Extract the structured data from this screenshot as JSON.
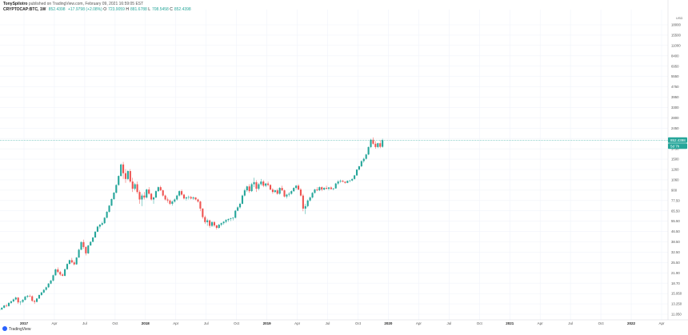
{
  "header": {
    "author": "TonySpilotro",
    "published": "published on TradingView.com, February 09, 2021 16:59:05 EST",
    "symbol": "CRYPTOCAP:BTC, 1W",
    "last": "852.4398",
    "change": "+17.9798 (+2.08%)",
    "o_label": "O",
    "o_value": "723.9059",
    "h_label": "H",
    "h_value": "881.6788",
    "l_label": "L",
    "l_value": "708.5458",
    "c_label": "C",
    "c_value": "852.4398"
  },
  "currency_label": "USD",
  "logo_text": "TradingView",
  "price_badges": {
    "last_price": "852.4398",
    "countdown": "5d 7h"
  },
  "colors": {
    "up": "#26a69a",
    "down": "#ef5350",
    "grid": "#f0f3fa",
    "last_price_line": "#26a69a"
  },
  "chart_data": {
    "type": "candlestick",
    "scale": "log",
    "y_ticks": [
      "18000",
      "15500",
      "11000",
      "8400",
      "6950",
      "5550",
      "4750",
      "3950",
      "3300",
      "2800",
      "2450",
      "2050",
      "1750",
      "1500",
      "1260",
      "1060",
      "900",
      "77.50",
      "65.50",
      "55.50",
      "46.50",
      "38.50",
      "32.50",
      "25.50",
      "21.90",
      "18.70",
      "15.950",
      "13.250",
      "11.050"
    ],
    "x_ticks": [
      "2017",
      "Apr",
      "Jul",
      "Oct",
      "2018",
      "Apr",
      "Jul",
      "Oct",
      "2019",
      "Apr",
      "Jul",
      "Oct",
      "2020",
      "Apr",
      "Jul",
      "Oct",
      "2021",
      "Apr",
      "Jul",
      "Oct",
      "2022",
      "Apr"
    ],
    "x_tick_dates": [
      "2017-01",
      "2017-04",
      "2017-07",
      "2017-10",
      "2018-01",
      "2018-04",
      "2018-07",
      "2018-10",
      "2019-01",
      "2019-04",
      "2019-07",
      "2019-10",
      "2020-01",
      "2020-04",
      "2020-07",
      "2020-10",
      "2021-01",
      "2021-04",
      "2021-07",
      "2021-10",
      "2022-01",
      "2022-04"
    ],
    "grid": true,
    "interval": "1W",
    "candles_start": "2016-10",
    "candles_ohlc": [
      [
        13.0,
        13.3,
        12.8,
        13.2
      ],
      [
        13.2,
        13.6,
        13.0,
        13.4
      ],
      [
        13.4,
        13.8,
        13.2,
        13.6
      ],
      [
        13.6,
        14.4,
        13.5,
        14.2
      ],
      [
        14.2,
        15.2,
        14.0,
        15.0
      ],
      [
        15.0,
        15.6,
        14.4,
        14.8
      ],
      [
        14.8,
        16.2,
        14.6,
        16.0
      ],
      [
        16.0,
        17.0,
        15.6,
        16.6
      ],
      [
        16.6,
        17.8,
        16.2,
        17.4
      ],
      [
        17.4,
        18.6,
        17.0,
        18.2
      ],
      [
        18.2,
        18.4,
        15.6,
        16.2
      ],
      [
        16.2,
        16.8,
        15.2,
        16.4
      ],
      [
        16.4,
        17.6,
        16.0,
        17.2
      ],
      [
        17.2,
        19.0,
        17.0,
        18.6
      ],
      [
        18.6,
        19.4,
        18.0,
        19.0
      ],
      [
        19.0,
        19.6,
        18.4,
        18.8
      ],
      [
        18.8,
        19.2,
        16.4,
        16.8
      ],
      [
        16.8,
        17.2,
        15.6,
        16.4
      ],
      [
        16.4,
        18.0,
        16.2,
        17.8
      ],
      [
        17.8,
        19.6,
        17.6,
        19.4
      ],
      [
        19.4,
        21.0,
        19.0,
        20.6
      ],
      [
        20.6,
        22.4,
        20.2,
        22.0
      ],
      [
        22.0,
        23.8,
        21.6,
        23.4
      ],
      [
        23.4,
        26.0,
        23.0,
        25.6
      ],
      [
        25.6,
        28.0,
        25.2,
        27.6
      ],
      [
        27.6,
        32.0,
        27.0,
        31.4
      ],
      [
        31.4,
        37.0,
        31.0,
        36.2
      ],
      [
        36.2,
        38.0,
        33.0,
        34.0
      ],
      [
        34.0,
        35.0,
        31.0,
        32.0
      ],
      [
        32.0,
        33.0,
        30.6,
        31.0
      ],
      [
        31.0,
        37.0,
        30.6,
        36.4
      ],
      [
        36.4,
        42.0,
        36.0,
        41.4
      ],
      [
        41.4,
        46.0,
        41.0,
        45.4
      ],
      [
        45.4,
        48.0,
        42.0,
        43.0
      ],
      [
        43.0,
        45.0,
        40.0,
        41.0
      ],
      [
        41.0,
        49.0,
        40.6,
        48.4
      ],
      [
        48.4,
        60.0,
        48.0,
        58.6
      ],
      [
        58.6,
        72.0,
        58.0,
        70.6
      ],
      [
        70.6,
        75.0,
        60.0,
        62.6
      ],
      [
        62.6,
        64.0,
        51.0,
        53.6
      ],
      [
        53.6,
        66.0,
        53.0,
        65.0
      ],
      [
        65.0,
        72.0,
        64.6,
        71.0
      ],
      [
        71.0,
        80.0,
        70.6,
        79.0
      ],
      [
        79.0,
        92.0,
        78.6,
        91.0
      ],
      [
        91.0,
        105.0,
        90.0,
        103.0
      ],
      [
        103.0,
        110.0,
        98.0,
        108.0
      ],
      [
        108.0,
        116.0,
        105.0,
        112.0
      ],
      [
        112.0,
        130.0,
        110.0,
        128.0
      ],
      [
        128.0,
        150.0,
        126.0,
        148.0
      ],
      [
        148.0,
        175.0,
        145.0,
        172.0
      ],
      [
        172.0,
        205.0,
        170.0,
        202.0
      ],
      [
        202.0,
        240.0,
        198.0,
        236.0
      ],
      [
        236.0,
        290.0,
        232.0,
        285.0
      ],
      [
        285.0,
        360.0,
        280.0,
        355.0
      ],
      [
        355.0,
        480.0,
        350.0,
        470.0
      ],
      [
        470.0,
        500.0,
        330.0,
        380.0
      ],
      [
        380.0,
        420.0,
        300.0,
        330.0
      ],
      [
        330.0,
        410.0,
        320.0,
        400.0
      ],
      [
        400.0,
        420.0,
        300.0,
        310.0
      ],
      [
        310.0,
        340.0,
        240.0,
        260.0
      ],
      [
        260.0,
        300.0,
        250.0,
        290.0
      ],
      [
        290.0,
        310.0,
        230.0,
        240.0
      ],
      [
        240.0,
        250.0,
        180.0,
        200.0
      ],
      [
        200.0,
        230.0,
        170.0,
        220.0
      ],
      [
        220.0,
        240.0,
        200.0,
        210.0
      ],
      [
        210.0,
        260.0,
        205.0,
        255.0
      ],
      [
        255.0,
        270.0,
        225.0,
        230.0
      ],
      [
        230.0,
        235.0,
        195.0,
        200.0
      ],
      [
        200.0,
        215.0,
        180.0,
        210.0
      ],
      [
        210.0,
        250.0,
        205.0,
        245.0
      ],
      [
        245.0,
        275.0,
        240.0,
        270.0
      ],
      [
        270.0,
        280.0,
        245.0,
        250.0
      ],
      [
        250.0,
        255.0,
        215.0,
        220.0
      ],
      [
        220.0,
        225.0,
        195.0,
        200.0
      ],
      [
        200.0,
        210.0,
        185.0,
        195.0
      ],
      [
        195.0,
        200.0,
        175.0,
        180.0
      ],
      [
        180.0,
        195.0,
        172.0,
        190.0
      ],
      [
        190.0,
        205.0,
        185.0,
        200.0
      ],
      [
        200.0,
        225.0,
        195.0,
        220.0
      ],
      [
        220.0,
        250.0,
        215.0,
        245.0
      ],
      [
        245.0,
        255.0,
        220.0,
        225.0
      ],
      [
        225.0,
        230.0,
        200.0,
        205.0
      ],
      [
        205.0,
        215.0,
        195.0,
        210.0
      ],
      [
        210.0,
        220.0,
        200.0,
        212.0
      ],
      [
        212.0,
        218.0,
        200.0,
        205.0
      ],
      [
        205.0,
        215.0,
        198.0,
        210.0
      ],
      [
        210.0,
        212.0,
        196.0,
        200.0
      ],
      [
        200.0,
        204.0,
        185.0,
        190.0
      ],
      [
        190.0,
        194.0,
        150.0,
        160.0
      ],
      [
        160.0,
        162.0,
        125.0,
        130.0
      ],
      [
        130.0,
        135.0,
        110.0,
        115.0
      ],
      [
        115.0,
        125.0,
        105.0,
        120.0
      ],
      [
        120.0,
        122.0,
        100.0,
        105.0
      ],
      [
        105.0,
        118.0,
        102.0,
        115.0
      ],
      [
        115.0,
        118.0,
        102.0,
        106.0
      ],
      [
        106.0,
        108.0,
        96.0,
        100.0
      ],
      [
        100.0,
        110.0,
        98.0,
        108.0
      ],
      [
        108.0,
        114.0,
        104.0,
        112.0
      ],
      [
        112.0,
        118.0,
        108.0,
        116.0
      ],
      [
        116.0,
        124.0,
        112.0,
        121.0
      ],
      [
        121.0,
        126.0,
        116.0,
        124.0
      ],
      [
        124.0,
        128.0,
        118.0,
        126.0
      ],
      [
        126.0,
        130.0,
        120.0,
        128.0
      ],
      [
        128.0,
        155.0,
        126.0,
        152.0
      ],
      [
        152.0,
        170.0,
        150.0,
        165.0
      ],
      [
        165.0,
        185.0,
        160.0,
        180.0
      ],
      [
        180.0,
        225.0,
        178.0,
        220.0
      ],
      [
        220.0,
        260.0,
        215.0,
        250.0
      ],
      [
        250.0,
        280.0,
        240.0,
        275.0
      ],
      [
        275.0,
        290.0,
        235.0,
        245.0
      ],
      [
        245.0,
        300.0,
        240.0,
        290.0
      ],
      [
        290.0,
        340.0,
        270.0,
        305.0
      ],
      [
        305.0,
        320.0,
        240.0,
        260.0
      ],
      [
        260.0,
        300.0,
        250.0,
        290.0
      ],
      [
        290.0,
        330.0,
        280.0,
        310.0
      ],
      [
        310.0,
        320.0,
        270.0,
        280.0
      ],
      [
        280.0,
        300.0,
        270.0,
        295.0
      ],
      [
        295.0,
        310.0,
        275.0,
        285.0
      ],
      [
        285.0,
        290.0,
        250.0,
        255.0
      ],
      [
        255.0,
        265.0,
        230.0,
        240.0
      ],
      [
        240.0,
        255.0,
        235.0,
        250.0
      ],
      [
        250.0,
        260.0,
        225.0,
        230.0
      ],
      [
        230.0,
        270.0,
        225.0,
        265.0
      ],
      [
        265.0,
        280.0,
        245.0,
        250.0
      ],
      [
        250.0,
        255.0,
        210.0,
        215.0
      ],
      [
        215.0,
        230.0,
        205.0,
        225.0
      ],
      [
        225.0,
        240.0,
        215.0,
        230.0
      ],
      [
        230.0,
        250.0,
        225.0,
        245.0
      ],
      [
        245.0,
        270.0,
        240.0,
        265.0
      ],
      [
        265.0,
        285.0,
        255.0,
        280.0
      ],
      [
        280.0,
        290.0,
        250.0,
        255.0
      ],
      [
        255.0,
        265.0,
        215.0,
        220.0
      ],
      [
        220.0,
        230.0,
        150.0,
        160.0
      ],
      [
        160.0,
        180.0,
        140.0,
        170.0
      ],
      [
        170.0,
        200.0,
        165.0,
        195.0
      ],
      [
        195.0,
        215.0,
        190.0,
        210.0
      ],
      [
        210.0,
        240.0,
        205.0,
        235.0
      ],
      [
        235.0,
        260.0,
        230.0,
        255.0
      ],
      [
        255.0,
        270.0,
        245.0,
        250.0
      ],
      [
        250.0,
        275.0,
        245.0,
        270.0
      ],
      [
        270.0,
        275.0,
        245.0,
        255.0
      ],
      [
        255.0,
        270.0,
        250.0,
        265.0
      ],
      [
        265.0,
        280.0,
        255.0,
        260.0
      ],
      [
        260.0,
        270.0,
        250.0,
        268.0
      ],
      [
        268.0,
        275.0,
        255.0,
        258.0
      ],
      [
        258.0,
        265.0,
        250.0,
        262.0
      ],
      [
        262.0,
        300.0,
        260.0,
        295.0
      ],
      [
        295.0,
        320.0,
        285.0,
        310.0
      ],
      [
        310.0,
        325.0,
        300.0,
        315.0
      ],
      [
        315.0,
        322.0,
        305.0,
        308.0
      ],
      [
        308.0,
        312.0,
        295.0,
        300.0
      ],
      [
        300.0,
        318.0,
        298.0,
        315.0
      ],
      [
        315.0,
        322.0,
        305.0,
        318.0
      ],
      [
        318.0,
        335.0,
        312.0,
        330.0
      ],
      [
        330.0,
        365.0,
        325.0,
        360.0
      ],
      [
        360.0,
        420.0,
        355.0,
        415.0
      ],
      [
        415.0,
        455.0,
        405.0,
        450.0
      ],
      [
        450.0,
        520.0,
        440.0,
        510.0
      ],
      [
        510.0,
        555.0,
        490.0,
        540.0
      ],
      [
        540.0,
        610.0,
        530.0,
        600.0
      ],
      [
        600.0,
        730.0,
        590.0,
        720.0
      ],
      [
        720.0,
        880.0,
        700.0,
        860.0
      ],
      [
        860.0,
        910.0,
        760.0,
        780.0
      ],
      [
        780.0,
        830.0,
        690.0,
        720.0
      ],
      [
        720.0,
        800.0,
        700.0,
        790.0
      ],
      [
        790.0,
        850.0,
        700.0,
        724.0
      ],
      [
        724.0,
        882.0,
        708.0,
        852.0
      ]
    ]
  }
}
